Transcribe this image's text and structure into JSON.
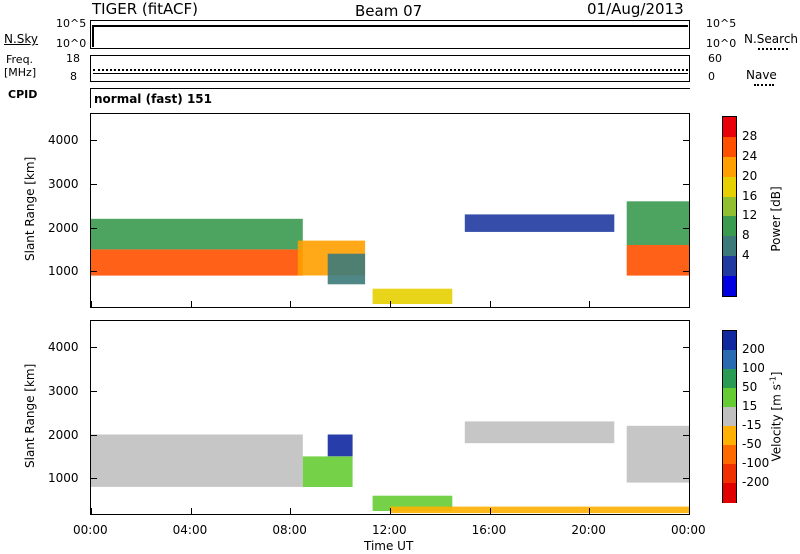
{
  "header": {
    "title": "TIGER (fitACF)",
    "beam": "Beam 07",
    "date": "01/Aug/2013"
  },
  "nsky_panel": {
    "left_label": "N.Sky",
    "right_label": "N.Search",
    "tick_top": "10^5",
    "tick_bottom": "10^0"
  },
  "freq_panel": {
    "left_label_1": "Freq.",
    "left_label_2": "[MHz]",
    "tick_top": "18",
    "tick_bottom": "8",
    "right_tick_top": "60",
    "right_tick_bottom": "0",
    "right_label": "Nave"
  },
  "cpid_panel": {
    "left_label": "CPID",
    "mode_text": "normal (fast) 151"
  },
  "power_colorbar": {
    "label": "Power [dB]",
    "ticks": [
      "28",
      "24",
      "20",
      "16",
      "12",
      "8",
      "4"
    ],
    "colors": [
      "#e8000b",
      "#ff5000",
      "#ffa000",
      "#e6d000",
      "#90c030",
      "#3a9a50",
      "#3c7a7a",
      "#203aa0",
      "#0000e0"
    ]
  },
  "velocity_colorbar": {
    "label": "Velocity [m s",
    "label_sup": "-1",
    "label_end": "]",
    "ticks": [
      "200",
      "100",
      "50",
      "15",
      "-15",
      "-50",
      "-100",
      "-200"
    ],
    "colors": [
      "#1028a0",
      "#2a6ab0",
      "#2a9a55",
      "#66cc33",
      "#c0c0c0",
      "#ffb000",
      "#ff6a00",
      "#f03000",
      "#e00000"
    ]
  },
  "y_axis": {
    "label": "Slant Range [km]",
    "ticks": [
      "4000",
      "3000",
      "2000",
      "1000"
    ]
  },
  "x_axis": {
    "label": "Time UT",
    "ticks": [
      "00:00",
      "04:00",
      "08:00",
      "12:00",
      "16:00",
      "20:00",
      "00:00"
    ]
  },
  "chart_data": {
    "type": "heatmap",
    "title": "TIGER (fitACF)",
    "xlabel": "Time UT",
    "ylabel": "Slant Range [km]",
    "xlim": [
      0,
      24
    ],
    "ylim": [
      180,
      4600
    ],
    "panels": [
      {
        "name": "Power [dB]",
        "color_range": [
          0,
          32
        ],
        "regions": [
          {
            "t0": 0.0,
            "t1": 8.5,
            "r0": 900,
            "r1": 1500,
            "value": 26
          },
          {
            "t0": 0.0,
            "t1": 8.5,
            "r0": 1500,
            "r1": 2200,
            "value": 12
          },
          {
            "t0": 8.3,
            "t1": 11.0,
            "r0": 900,
            "r1": 1700,
            "value": 22
          },
          {
            "t0": 9.5,
            "t1": 11.0,
            "r0": 700,
            "r1": 1400,
            "value": 10
          },
          {
            "t0": 11.3,
            "t1": 14.5,
            "r0": 250,
            "r1": 600,
            "value": 20
          },
          {
            "t0": 15.0,
            "t1": 21.0,
            "r0": 1900,
            "r1": 2300,
            "value": 6
          },
          {
            "t0": 21.5,
            "t1": 24.0,
            "r0": 900,
            "r1": 1600,
            "value": 26
          },
          {
            "t0": 21.5,
            "t1": 24.0,
            "r0": 1600,
            "r1": 2600,
            "value": 12
          }
        ]
      },
      {
        "name": "Velocity [m s-1]",
        "color_range": [
          -200,
          200
        ],
        "regions": [
          {
            "t0": 0.0,
            "t1": 8.5,
            "r0": 800,
            "r1": 2000,
            "value": 0
          },
          {
            "t0": 8.5,
            "t1": 10.5,
            "r0": 800,
            "r1": 1500,
            "value": 60
          },
          {
            "t0": 9.5,
            "t1": 10.5,
            "r0": 1500,
            "r1": 2000,
            "value": 180
          },
          {
            "t0": 11.3,
            "t1": 14.5,
            "r0": 250,
            "r1": 600,
            "value": 30
          },
          {
            "t0": 12.0,
            "t1": 24.0,
            "r0": 200,
            "r1": 350,
            "value": -60
          },
          {
            "t0": 15.0,
            "t1": 21.0,
            "r0": 1800,
            "r1": 2300,
            "value": 0
          },
          {
            "t0": 21.5,
            "t1": 24.0,
            "r0": 900,
            "r1": 2200,
            "value": 0
          }
        ]
      }
    ]
  }
}
